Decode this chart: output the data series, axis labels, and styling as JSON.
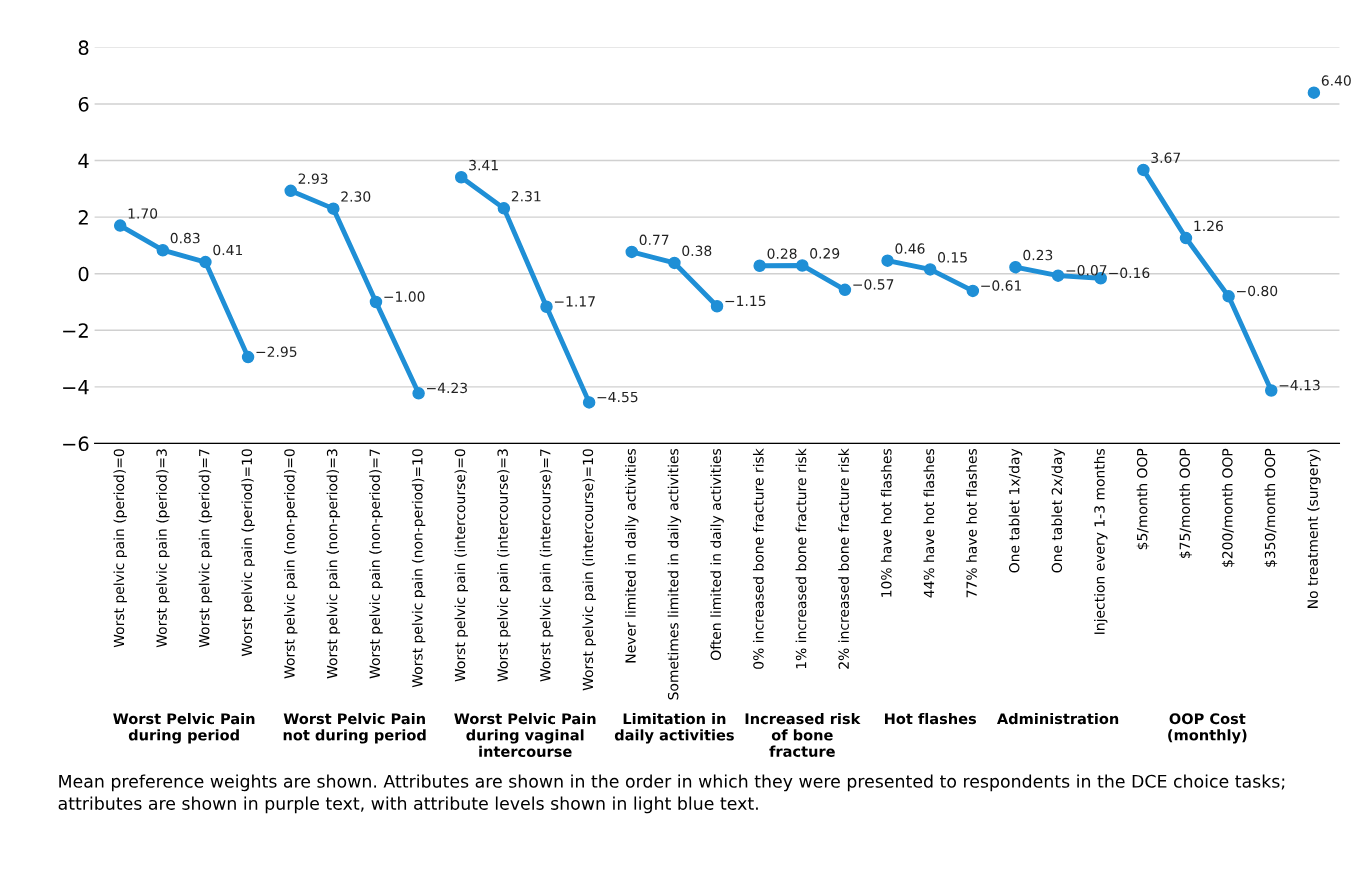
{
  "chart_data": {
    "type": "line",
    "categories": [
      "Worst pelvic pain (period)=0",
      "Worst pelvic pain (period)=3",
      "Worst pelvic pain (period)=7",
      "Worst pelvic pain (period)=10",
      "Worst pelvic pain (non-period)=0",
      "Worst pelvic pain (non-period)=3",
      "Worst pelvic pain (non-period)=7",
      "Worst pelvic pain (non-period)=10",
      "Worst pelvic pain (intercourse)=0",
      "Worst pelvic pain (intercourse)=3",
      "Worst pelvic pain (intercourse)=7",
      "Worst pelvic pain (intercourse)=10",
      "Never limited in daily activities",
      "Sometimes limited in daily activities",
      "Often limited in daily activities",
      "0% increased bone fracture risk",
      "1% increased bone fracture risk",
      "2% increased bone fracture risk",
      "10% have hot flashes",
      "44% have hot flashes",
      "77% have hot flashes",
      "One tablet 1x/day",
      "One tablet 2x/day",
      "Injection every 1-3 months",
      "$5/month OOP",
      "$75/month OOP",
      "$200/month OOP",
      "$350/month OOP",
      "No treatment (surgery)"
    ],
    "series": [
      {
        "color": "#1f8fd6",
        "values": [
          1.7,
          0.83,
          0.41,
          -2.95,
          null,
          null,
          null,
          null,
          null,
          null,
          null,
          null,
          null,
          null,
          null,
          null,
          null,
          null,
          null,
          null,
          null,
          null,
          null,
          null,
          null,
          null,
          null,
          null,
          null
        ],
        "value_labels": [
          "1.70",
          "0.83",
          "0.41",
          "−2.95",
          null,
          null,
          null,
          null,
          null,
          null,
          null,
          null,
          null,
          null,
          null,
          null,
          null,
          null,
          null,
          null,
          null,
          null,
          null,
          null,
          null,
          null,
          null,
          null,
          null
        ]
      },
      {
        "color": "#1f8fd6",
        "values": [
          null,
          null,
          null,
          null,
          2.93,
          2.3,
          -1.0,
          -4.23,
          null,
          null,
          null,
          null,
          null,
          null,
          null,
          null,
          null,
          null,
          null,
          null,
          null,
          null,
          null,
          null,
          null,
          null,
          null,
          null,
          null
        ],
        "value_labels": [
          null,
          null,
          null,
          null,
          "2.93",
          "2.30",
          "−1.00",
          "−4.23",
          null,
          null,
          null,
          null,
          null,
          null,
          null,
          null,
          null,
          null,
          null,
          null,
          null,
          null,
          null,
          null,
          null,
          null,
          null,
          null,
          null
        ]
      },
      {
        "color": "#1f8fd6",
        "values": [
          null,
          null,
          null,
          null,
          null,
          null,
          null,
          null,
          3.41,
          2.31,
          -1.17,
          -4.55,
          null,
          null,
          null,
          null,
          null,
          null,
          null,
          null,
          null,
          null,
          null,
          null,
          null,
          null,
          null,
          null,
          null
        ],
        "value_labels": [
          null,
          null,
          null,
          null,
          null,
          null,
          null,
          null,
          "3.41",
          "2.31",
          "−1.17",
          "−4.55",
          null,
          null,
          null,
          null,
          null,
          null,
          null,
          null,
          null,
          null,
          null,
          null,
          null,
          null,
          null,
          null,
          null
        ]
      },
      {
        "color": "#1f8fd6",
        "values": [
          null,
          null,
          null,
          null,
          null,
          null,
          null,
          null,
          null,
          null,
          null,
          null,
          0.77,
          0.38,
          -1.15,
          null,
          null,
          null,
          null,
          null,
          null,
          null,
          null,
          null,
          null,
          null,
          null,
          null,
          null
        ],
        "value_labels": [
          null,
          null,
          null,
          null,
          null,
          null,
          null,
          null,
          null,
          null,
          null,
          null,
          "0.77",
          "0.38",
          "−1.15",
          null,
          null,
          null,
          null,
          null,
          null,
          null,
          null,
          null,
          null,
          null,
          null,
          null,
          null
        ]
      },
      {
        "color": "#1f8fd6",
        "values": [
          null,
          null,
          null,
          null,
          null,
          null,
          null,
          null,
          null,
          null,
          null,
          null,
          null,
          null,
          null,
          0.28,
          0.29,
          -0.57,
          null,
          null,
          null,
          null,
          null,
          null,
          null,
          null,
          null,
          null,
          null
        ],
        "value_labels": [
          null,
          null,
          null,
          null,
          null,
          null,
          null,
          null,
          null,
          null,
          null,
          null,
          null,
          null,
          null,
          "0.28",
          "0.29",
          "−0.57",
          null,
          null,
          null,
          null,
          null,
          null,
          null,
          null,
          null,
          null,
          null
        ]
      },
      {
        "color": "#1f8fd6",
        "values": [
          null,
          null,
          null,
          null,
          null,
          null,
          null,
          null,
          null,
          null,
          null,
          null,
          null,
          null,
          null,
          null,
          null,
          null,
          0.46,
          0.15,
          -0.61,
          null,
          null,
          null,
          null,
          null,
          null,
          null,
          null
        ],
        "value_labels": [
          null,
          null,
          null,
          null,
          null,
          null,
          null,
          null,
          null,
          null,
          null,
          null,
          null,
          null,
          null,
          null,
          null,
          null,
          "0.46",
          "0.15",
          "−0.61",
          null,
          null,
          null,
          null,
          null,
          null,
          null,
          null
        ]
      },
      {
        "color": "#1f8fd6",
        "values": [
          null,
          null,
          null,
          null,
          null,
          null,
          null,
          null,
          null,
          null,
          null,
          null,
          null,
          null,
          null,
          null,
          null,
          null,
          null,
          null,
          null,
          0.23,
          -0.07,
          -0.16,
          null,
          null,
          null,
          null,
          null
        ],
        "value_labels": [
          null,
          null,
          null,
          null,
          null,
          null,
          null,
          null,
          null,
          null,
          null,
          null,
          null,
          null,
          null,
          null,
          null,
          null,
          null,
          null,
          null,
          "0.23",
          "−0.07",
          "−0.16",
          null,
          null,
          null,
          null,
          null
        ]
      },
      {
        "color": "#1f8fd6",
        "values": [
          null,
          null,
          null,
          null,
          null,
          null,
          null,
          null,
          null,
          null,
          null,
          null,
          null,
          null,
          null,
          null,
          null,
          null,
          null,
          null,
          null,
          null,
          null,
          null,
          3.67,
          1.26,
          -0.8,
          -4.13,
          null
        ],
        "value_labels": [
          null,
          null,
          null,
          null,
          null,
          null,
          null,
          null,
          null,
          null,
          null,
          null,
          null,
          null,
          null,
          null,
          null,
          null,
          null,
          null,
          null,
          null,
          null,
          null,
          "3.67",
          "1.26",
          "−0.80",
          "−4.13",
          null
        ]
      },
      {
        "color": "#1f8fd6",
        "values": [
          null,
          null,
          null,
          null,
          null,
          null,
          null,
          null,
          null,
          null,
          null,
          null,
          null,
          null,
          null,
          null,
          null,
          null,
          null,
          null,
          null,
          null,
          null,
          null,
          null,
          null,
          null,
          null,
          6.4
        ],
        "value_labels": [
          null,
          null,
          null,
          null,
          null,
          null,
          null,
          null,
          null,
          null,
          null,
          null,
          null,
          null,
          null,
          null,
          null,
          null,
          null,
          null,
          null,
          null,
          null,
          null,
          null,
          null,
          null,
          null,
          "6.40"
        ]
      }
    ],
    "ylim": [
      -6,
      8
    ],
    "yticks": [
      {
        "value": -6,
        "label": "−6"
      },
      {
        "value": -4,
        "label": "−4"
      },
      {
        "value": -2,
        "label": "−2"
      },
      0,
      2,
      4,
      6,
      8
    ],
    "grid": "y",
    "marker": "circle",
    "line_style": "solid",
    "legend": false,
    "annotations": [
      "Worst Pelvic Pain\nduring period",
      "Worst Pelvic Pain\nnot during period",
      "Worst Pelvic Pain\nduring vaginal\nintercourse",
      "Limitation in\ndaily activities",
      "Increased risk\nof bone\nfracture",
      "Hot flashes",
      "Administration",
      "OOP Cost\n(monthly)",
      "Mean preference weights are shown. Attributes are shown in the order in which they were presented to respondents in the DCE choice tasks; attributes are shown in purple text, with attribute levels shown in light blue text."
    ]
  }
}
